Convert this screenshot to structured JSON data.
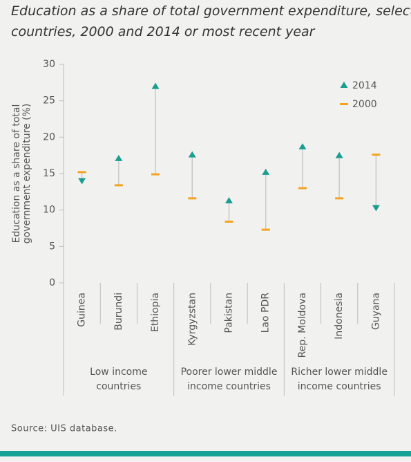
{
  "chart_data": {
    "type": "dumbbell",
    "title": [
      "Education as a share of total government expenditure, selected",
      "countries, 2000 and 2014 or most recent year"
    ],
    "y_label": [
      "Education as a share of total",
      "government expenditure (%)"
    ],
    "groups": [
      {
        "label": [
          "Low income",
          "countries"
        ],
        "categories": [
          "Guinea",
          "Burundi",
          "Ethiopia"
        ]
      },
      {
        "label": [
          "Poorer lower middle",
          "income countries"
        ],
        "categories": [
          "Kyrgyzstan",
          "Pakistan",
          "Lao PDR"
        ]
      },
      {
        "label": [
          "Richer lower middle",
          "income countries"
        ],
        "categories": [
          "Rep. Moldova",
          "Indonesia",
          "Guyana"
        ]
      }
    ],
    "series": [
      {
        "name": "2014",
        "color": "#1a9e8f",
        "values": [
          14.0,
          17.1,
          27.0,
          17.6,
          11.3,
          15.2,
          18.7,
          17.5,
          10.3
        ]
      },
      {
        "name": "2000",
        "color": "#f5a31e",
        "values": [
          15.2,
          13.4,
          14.9,
          11.6,
          8.4,
          7.3,
          13.0,
          11.6,
          17.6
        ]
      }
    ],
    "ylim": [
      0,
      30
    ],
    "yticks": [
      0,
      5,
      10,
      15,
      20,
      25,
      30
    ],
    "source": "Source: UIS database."
  }
}
